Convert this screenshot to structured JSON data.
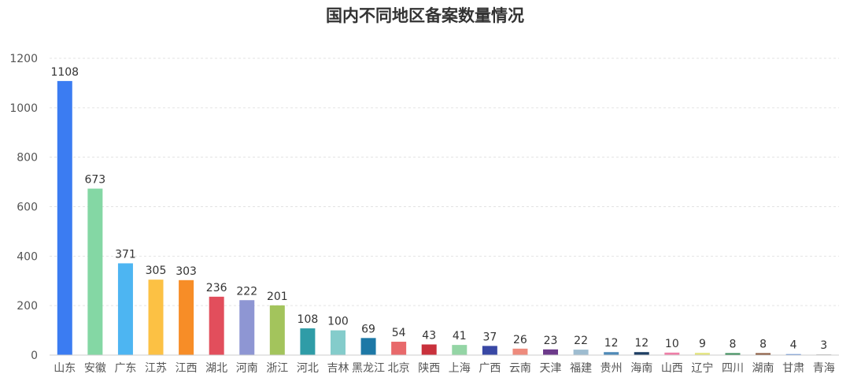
{
  "chart_data": {
    "type": "bar",
    "title": "国内不同地区备案数量情况",
    "xlabel": "",
    "ylabel": "",
    "ylim": [
      0,
      1200
    ],
    "yticks": [
      "0",
      "200",
      "400",
      "600",
      "800",
      "1000",
      "1200"
    ],
    "grid": true,
    "legend": "none",
    "categories": [
      "山东",
      "安徽",
      "广东",
      "江苏",
      "江西",
      "湖北",
      "河南",
      "浙江",
      "河北",
      "吉林",
      "黑龙江",
      "北京",
      "陕西",
      "上海",
      "广西",
      "云南",
      "天津",
      "福建",
      "贵州",
      "海南",
      "山西",
      "辽宁",
      "四川",
      "湖南",
      "甘肃",
      "青海"
    ],
    "values": [
      1108,
      673,
      371,
      305,
      303,
      236,
      222,
      201,
      108,
      100,
      69,
      54,
      43,
      41,
      37,
      26,
      23,
      22,
      12,
      12,
      10,
      9,
      8,
      8,
      4,
      3
    ],
    "colors": [
      "#3b7cf2",
      "#84d7a4",
      "#4db5f2",
      "#fcc144",
      "#f78d27",
      "#e24e5c",
      "#8e96d3",
      "#a3c45c",
      "#2f9ca7",
      "#84cccb",
      "#1d78a6",
      "#e8696b",
      "#c9313c",
      "#94d5a5",
      "#3948a5",
      "#ee8b7d",
      "#6c3a8a",
      "#9ebcd0",
      "#4e8ab7",
      "#1d3e63",
      "#ef7fa8",
      "#e4e57e",
      "#3c8e5c",
      "#8a5a3f",
      "#5a8ad8",
      "#b6b6b6"
    ]
  }
}
